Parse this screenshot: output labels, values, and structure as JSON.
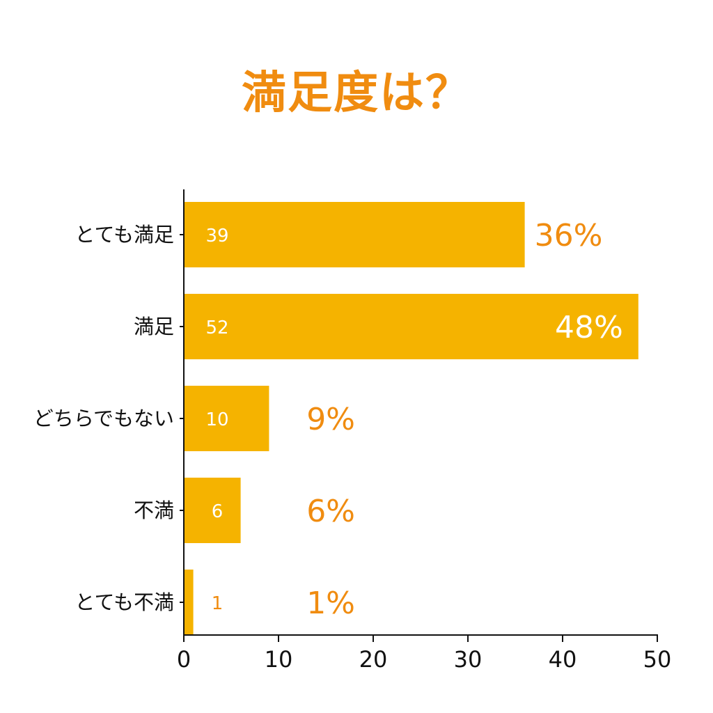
{
  "chart_data": {
    "type": "bar",
    "orientation": "horizontal",
    "title": "満足度は？",
    "categories": [
      "とても満足",
      "満足",
      "どちらでもない",
      "不満",
      "とても不満"
    ],
    "values": [
      39,
      52,
      10,
      6,
      1
    ],
    "bar_lengths": [
      36,
      48,
      9,
      6,
      1
    ],
    "percent_labels": [
      "36%",
      "48%",
      "9%",
      "6%",
      "1%"
    ],
    "xlim": [
      0,
      50
    ],
    "xticks": [
      "0",
      "10",
      "20",
      "30",
      "40",
      "50"
    ],
    "grid": false,
    "legend": "none"
  },
  "colors": {
    "bar": "#f5b300",
    "accent": "#f08c10",
    "axis": "#111111",
    "inside_label": "#ffffff"
  }
}
